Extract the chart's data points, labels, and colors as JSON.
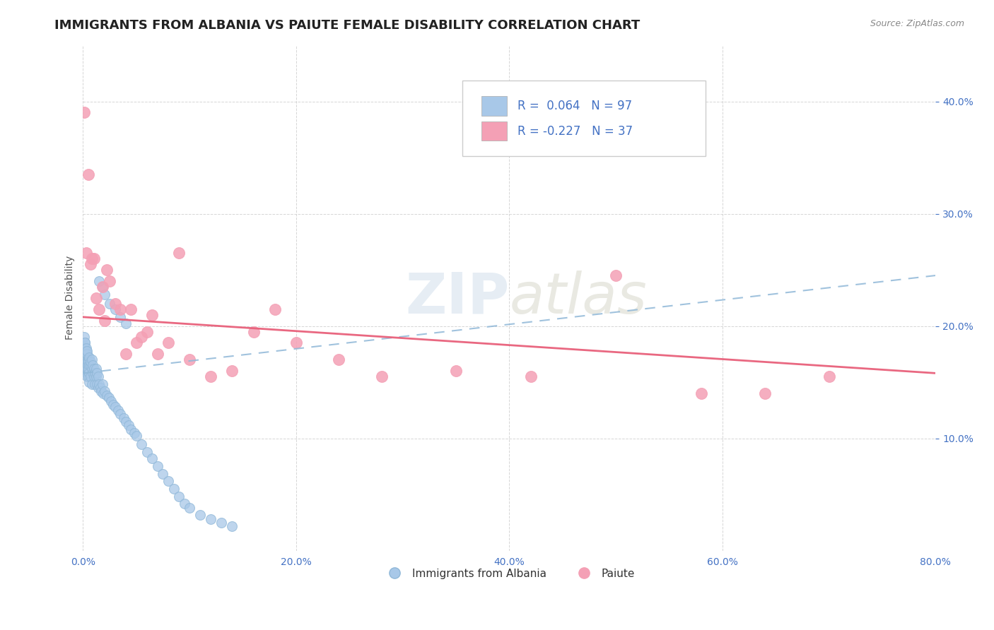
{
  "title": "IMMIGRANTS FROM ALBANIA VS PAIUTE FEMALE DISABILITY CORRELATION CHART",
  "source_text": "Source: ZipAtlas.com",
  "ylabel": "Female Disability",
  "xlim": [
    0.0,
    0.8
  ],
  "ylim": [
    0.0,
    0.45
  ],
  "xticks": [
    0.0,
    0.2,
    0.4,
    0.6,
    0.8
  ],
  "xticklabels": [
    "0.0%",
    "20.0%",
    "40.0%",
    "60.0%",
    "80.0%"
  ],
  "yticks": [
    0.1,
    0.2,
    0.3,
    0.4
  ],
  "yticklabels": [
    "10.0%",
    "20.0%",
    "30.0%",
    "40.0%"
  ],
  "legend_labels": [
    "Immigrants from Albania",
    "Paiute"
  ],
  "blue_color": "#A8C8E8",
  "pink_color": "#F4A0B5",
  "blue_line_color": "#90B8D8",
  "pink_line_color": "#E8607A",
  "tick_color": "#4472C4",
  "r_value_color": "#4472C4",
  "title_fontsize": 13,
  "axis_label_fontsize": 10,
  "tick_fontsize": 10,
  "watermark": "ZIPatlas",
  "blue_scatter_x": [
    0.0005,
    0.001,
    0.001,
    0.001,
    0.001,
    0.0015,
    0.0015,
    0.002,
    0.002,
    0.002,
    0.002,
    0.002,
    0.002,
    0.0025,
    0.0025,
    0.003,
    0.003,
    0.003,
    0.003,
    0.003,
    0.003,
    0.003,
    0.003,
    0.004,
    0.004,
    0.004,
    0.004,
    0.004,
    0.004,
    0.0045,
    0.005,
    0.005,
    0.005,
    0.005,
    0.005,
    0.006,
    0.006,
    0.006,
    0.006,
    0.007,
    0.007,
    0.007,
    0.008,
    0.008,
    0.008,
    0.009,
    0.009,
    0.01,
    0.01,
    0.011,
    0.011,
    0.012,
    0.012,
    0.013,
    0.013,
    0.014,
    0.014,
    0.015,
    0.016,
    0.017,
    0.018,
    0.019,
    0.02,
    0.022,
    0.024,
    0.026,
    0.028,
    0.03,
    0.033,
    0.035,
    0.038,
    0.04,
    0.043,
    0.045,
    0.048,
    0.05,
    0.055,
    0.06,
    0.065,
    0.07,
    0.075,
    0.08,
    0.085,
    0.09,
    0.095,
    0.1,
    0.11,
    0.12,
    0.13,
    0.14,
    0.015,
    0.018,
    0.02,
    0.025,
    0.03,
    0.035,
    0.04
  ],
  "blue_scatter_y": [
    0.178,
    0.17,
    0.182,
    0.19,
    0.175,
    0.168,
    0.185,
    0.165,
    0.172,
    0.18,
    0.185,
    0.162,
    0.175,
    0.178,
    0.168,
    0.16,
    0.172,
    0.165,
    0.178,
    0.18,
    0.158,
    0.175,
    0.162,
    0.17,
    0.175,
    0.168,
    0.162,
    0.155,
    0.178,
    0.165,
    0.16,
    0.17,
    0.168,
    0.155,
    0.162,
    0.165,
    0.158,
    0.172,
    0.15,
    0.165,
    0.168,
    0.155,
    0.162,
    0.17,
    0.148,
    0.158,
    0.165,
    0.155,
    0.162,
    0.158,
    0.148,
    0.155,
    0.162,
    0.148,
    0.158,
    0.145,
    0.155,
    0.148,
    0.145,
    0.142,
    0.148,
    0.14,
    0.142,
    0.138,
    0.136,
    0.133,
    0.13,
    0.128,
    0.125,
    0.122,
    0.118,
    0.115,
    0.112,
    0.108,
    0.105,
    0.102,
    0.095,
    0.088,
    0.082,
    0.075,
    0.068,
    0.062,
    0.055,
    0.048,
    0.042,
    0.038,
    0.032,
    0.028,
    0.025,
    0.022,
    0.24,
    0.235,
    0.228,
    0.22,
    0.215,
    0.208,
    0.202
  ],
  "pink_scatter_x": [
    0.001,
    0.003,
    0.005,
    0.007,
    0.008,
    0.01,
    0.012,
    0.015,
    0.018,
    0.02,
    0.022,
    0.025,
    0.03,
    0.035,
    0.04,
    0.045,
    0.05,
    0.055,
    0.06,
    0.065,
    0.07,
    0.08,
    0.09,
    0.1,
    0.12,
    0.14,
    0.16,
    0.18,
    0.2,
    0.24,
    0.28,
    0.35,
    0.42,
    0.5,
    0.58,
    0.64,
    0.7
  ],
  "pink_scatter_y": [
    0.39,
    0.265,
    0.335,
    0.255,
    0.26,
    0.26,
    0.225,
    0.215,
    0.235,
    0.205,
    0.25,
    0.24,
    0.22,
    0.215,
    0.175,
    0.215,
    0.185,
    0.19,
    0.195,
    0.21,
    0.175,
    0.185,
    0.265,
    0.17,
    0.155,
    0.16,
    0.195,
    0.215,
    0.185,
    0.17,
    0.155,
    0.16,
    0.155,
    0.245,
    0.14,
    0.14,
    0.155
  ],
  "blue_trend_x": [
    0.0,
    0.8
  ],
  "blue_trend_y": [
    0.158,
    0.245
  ],
  "pink_trend_x": [
    0.0,
    0.8
  ],
  "pink_trend_y": [
    0.208,
    0.158
  ]
}
